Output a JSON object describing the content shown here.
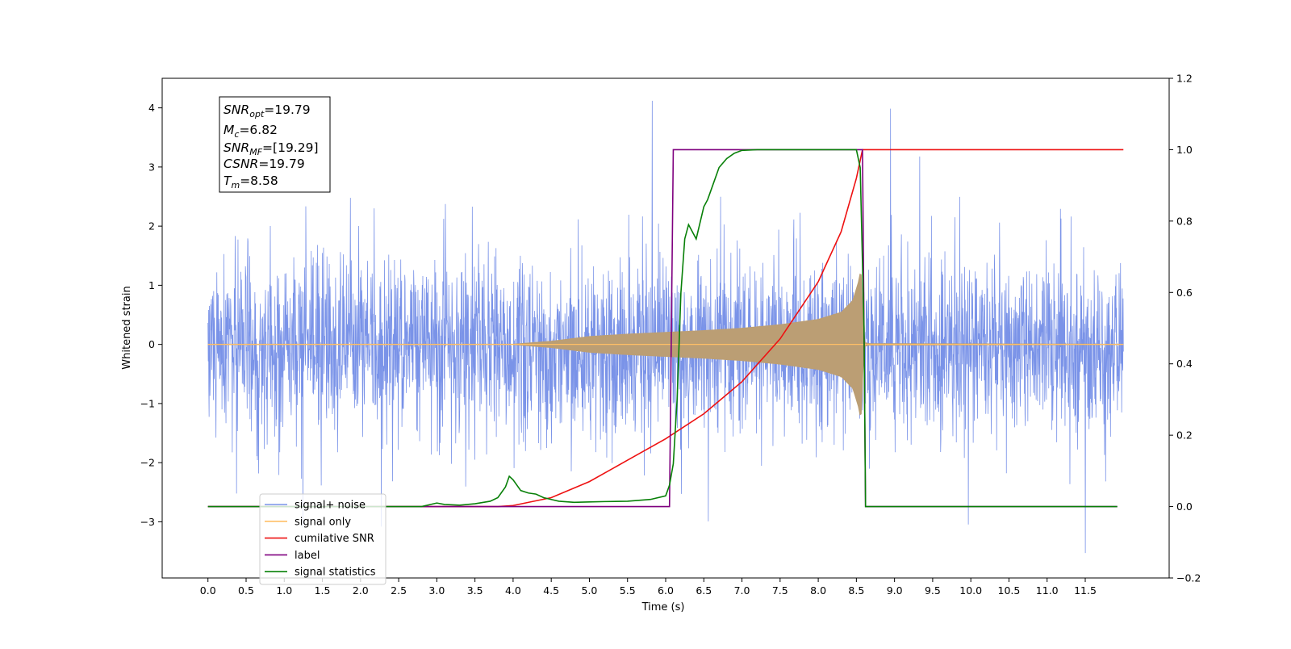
{
  "chart_data": {
    "type": "line",
    "xlabel": "Time (s)",
    "ylabel_left": "Whitened strain",
    "ylabel_right": "",
    "xlim": [
      -0.6,
      12.6
    ],
    "ylim_left": [
      -3.95,
      4.5
    ],
    "ylim_right": [
      -0.2,
      1.2
    ],
    "x_ticks": [
      "0.0",
      "0.5",
      "1.0",
      "1.5",
      "2.0",
      "2.5",
      "3.0",
      "3.5",
      "4.0",
      "4.5",
      "5.0",
      "5.5",
      "6.0",
      "6.5",
      "7.0",
      "7.5",
      "8.0",
      "8.5",
      "9.0",
      "9.5",
      "10.0",
      "10.5",
      "11.0",
      "11.5"
    ],
    "y_ticks_left": [
      "4",
      "3",
      "2",
      "1",
      "0",
      "−1",
      "−2",
      "−3"
    ],
    "y_ticks_left_values": [
      4,
      3,
      2,
      1,
      0,
      -1,
      -2,
      -3
    ],
    "y_ticks_right": [
      "1.2",
      "1.0",
      "0.8",
      "0.6",
      "0.4",
      "0.2",
      "0.0",
      "−0.2"
    ],
    "y_ticks_right_values": [
      1.2,
      1.0,
      0.8,
      0.6,
      0.4,
      0.2,
      0.0,
      -0.2
    ],
    "grid": false,
    "legend_position": "bottom-left",
    "info_box": {
      "snr_opt_main": "SNR",
      "snr_opt_sub": "opt",
      "snr_opt_value": "=19.79",
      "mc_main": "M",
      "mc_sub": "c",
      "mc_value": "=6.82",
      "snr_mf_main": "SNR",
      "snr_mf_sub": "MF",
      "snr_mf_value": "=[19.29]",
      "csnr_main": "CSNR",
      "csnr_value": "=19.79",
      "tm_main": "T",
      "tm_sub": "m",
      "tm_value": "=8.58"
    },
    "series": [
      {
        "name": "signal+ noise",
        "color": "#7a93e8",
        "axis": "left",
        "kind": "noise",
        "x_range": [
          0.0,
          12.0
        ],
        "noise_std": 0.75,
        "observed_min": -3.55,
        "observed_max": 4.12
      },
      {
        "name": "signal only",
        "color": "#ffbf66",
        "axis": "left",
        "kind": "chirp_envelope",
        "fill_color": "#bb9e74",
        "x": [
          0.0,
          4.0,
          4.5,
          5.0,
          5.5,
          6.0,
          6.5,
          7.0,
          7.5,
          8.0,
          8.3,
          8.45,
          8.52,
          8.56,
          8.58,
          8.6,
          8.65,
          12.0
        ],
        "envelope": [
          0.01,
          0.01,
          0.06,
          0.14,
          0.18,
          0.21,
          0.24,
          0.28,
          0.34,
          0.43,
          0.55,
          0.75,
          1.05,
          1.3,
          1.0,
          0.05,
          0.02,
          0.01
        ]
      },
      {
        "name": "cumilative SNR",
        "color": "#ee1111",
        "axis": "right",
        "x": [
          0.0,
          3.8,
          4.0,
          4.5,
          5.0,
          5.5,
          6.0,
          6.5,
          7.0,
          7.5,
          8.0,
          8.3,
          8.5,
          8.58,
          12.0
        ],
        "values": [
          0.0,
          0.0,
          0.003,
          0.025,
          0.07,
          0.13,
          0.19,
          0.26,
          0.35,
          0.47,
          0.63,
          0.77,
          0.92,
          1.0,
          1.0
        ]
      },
      {
        "name": "label",
        "color": "#7f007f",
        "axis": "right",
        "x": [
          0.0,
          6.05,
          6.1,
          8.58,
          8.62,
          11.92
        ],
        "values": [
          0.0,
          0.0,
          1.0,
          1.0,
          0.0,
          0.0
        ]
      },
      {
        "name": "signal statistics",
        "color": "#088008",
        "axis": "right",
        "x": [
          0.0,
          2.8,
          3.0,
          3.1,
          3.3,
          3.5,
          3.7,
          3.8,
          3.9,
          3.95,
          4.0,
          4.1,
          4.2,
          4.3,
          4.4,
          4.5,
          4.6,
          4.8,
          5.0,
          5.2,
          5.5,
          5.8,
          6.0,
          6.05,
          6.1,
          6.15,
          6.2,
          6.25,
          6.3,
          6.35,
          6.4,
          6.5,
          6.55,
          6.6,
          6.7,
          6.8,
          6.9,
          7.0,
          7.2,
          7.5,
          8.0,
          8.5,
          8.55,
          8.6,
          8.62,
          8.65,
          11.92
        ],
        "values": [
          0.0,
          0.0,
          0.01,
          0.006,
          0.004,
          0.008,
          0.015,
          0.025,
          0.055,
          0.085,
          0.075,
          0.045,
          0.038,
          0.035,
          0.025,
          0.02,
          0.015,
          0.012,
          0.013,
          0.014,
          0.015,
          0.02,
          0.03,
          0.06,
          0.12,
          0.3,
          0.6,
          0.75,
          0.79,
          0.77,
          0.75,
          0.84,
          0.86,
          0.89,
          0.95,
          0.975,
          0.99,
          0.998,
          1.0,
          1.0,
          1.0,
          1.0,
          0.95,
          0.5,
          0.0,
          0.0,
          0.0
        ]
      }
    ],
    "legend_entries": [
      {
        "label": "signal+ noise",
        "color": "#7a93e8"
      },
      {
        "label": "signal only",
        "color": "#ffbf66"
      },
      {
        "label": "cumilative SNR",
        "color": "#ee1111"
      },
      {
        "label": "label",
        "color": "#7f007f"
      },
      {
        "label": "signal statistics",
        "color": "#088008"
      }
    ]
  }
}
